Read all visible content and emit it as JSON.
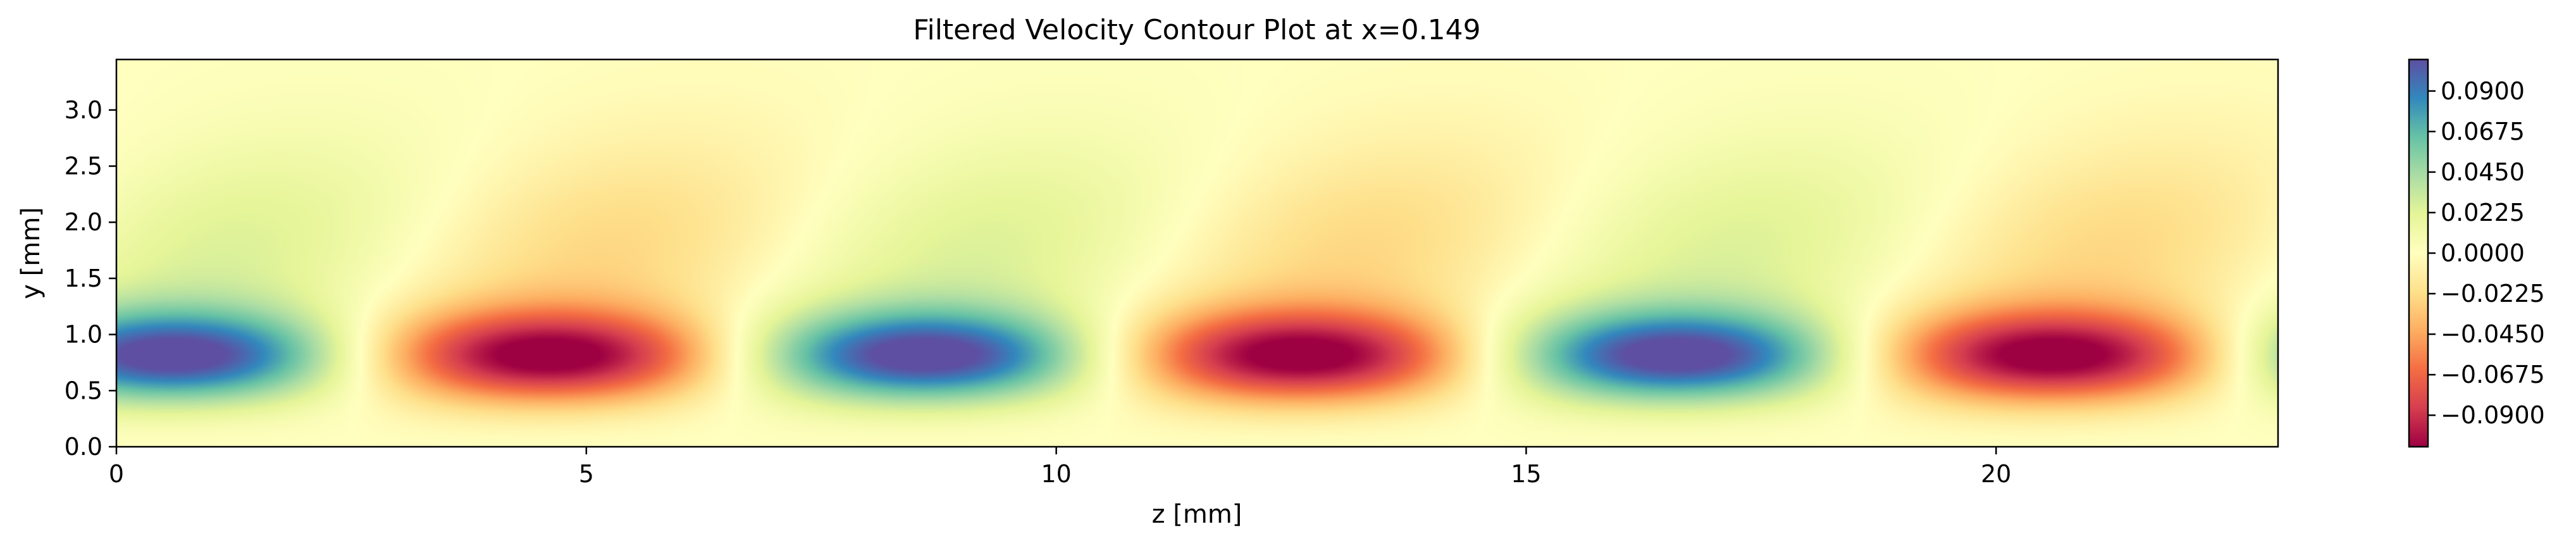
{
  "chart_data": {
    "type": "heatmap",
    "title": "Filtered Velocity Contour Plot at x=0.149",
    "xlabel": "z [mm]",
    "ylabel": "y [mm]",
    "xlim": [
      0,
      23
    ],
    "ylim": [
      0,
      3.45
    ],
    "x_ticks": [
      0,
      5,
      10,
      15,
      20
    ],
    "x_tick_labels": [
      "0",
      "5",
      "10",
      "15",
      "20"
    ],
    "y_ticks": [
      0.0,
      0.5,
      1.0,
      1.5,
      2.0,
      2.5,
      3.0
    ],
    "y_tick_labels": [
      "0.0",
      "0.5",
      "1.0",
      "1.5",
      "2.0",
      "2.5",
      "3.0"
    ],
    "grid": false,
    "colormap": "Spectral",
    "colormap_stops": [
      "#9e0142",
      "#d53e4f",
      "#f46d43",
      "#fdae61",
      "#fee08b",
      "#ffffbf",
      "#e6f598",
      "#abdda4",
      "#66c2a5",
      "#3288bd",
      "#5e4fa2"
    ],
    "value_range": [
      -0.1075,
      0.1075
    ],
    "colorbar": {
      "ticks": [
        0.09,
        0.0675,
        0.045,
        0.0225,
        0.0,
        -0.0225,
        -0.045,
        -0.0675,
        -0.09
      ],
      "tick_labels": [
        "0.0900",
        "0.0675",
        "0.0450",
        "0.0225",
        "0.0000",
        "−0.0225",
        "−0.0450",
        "−0.0675",
        "−0.0900"
      ]
    },
    "field": {
      "description_of_pattern": "alternating streaks in z",
      "structures": [
        {
          "z": 0.6,
          "y": 0.8,
          "value": 0.105
        },
        {
          "z": 4.6,
          "y": 0.8,
          "value": -0.105
        },
        {
          "z": 8.6,
          "y": 0.8,
          "value": 0.105
        },
        {
          "z": 12.6,
          "y": 0.8,
          "value": -0.105
        },
        {
          "z": 16.6,
          "y": 0.8,
          "value": 0.105
        },
        {
          "z": 20.6,
          "y": 0.8,
          "value": -0.105
        }
      ],
      "period_z": 8.0
    }
  }
}
